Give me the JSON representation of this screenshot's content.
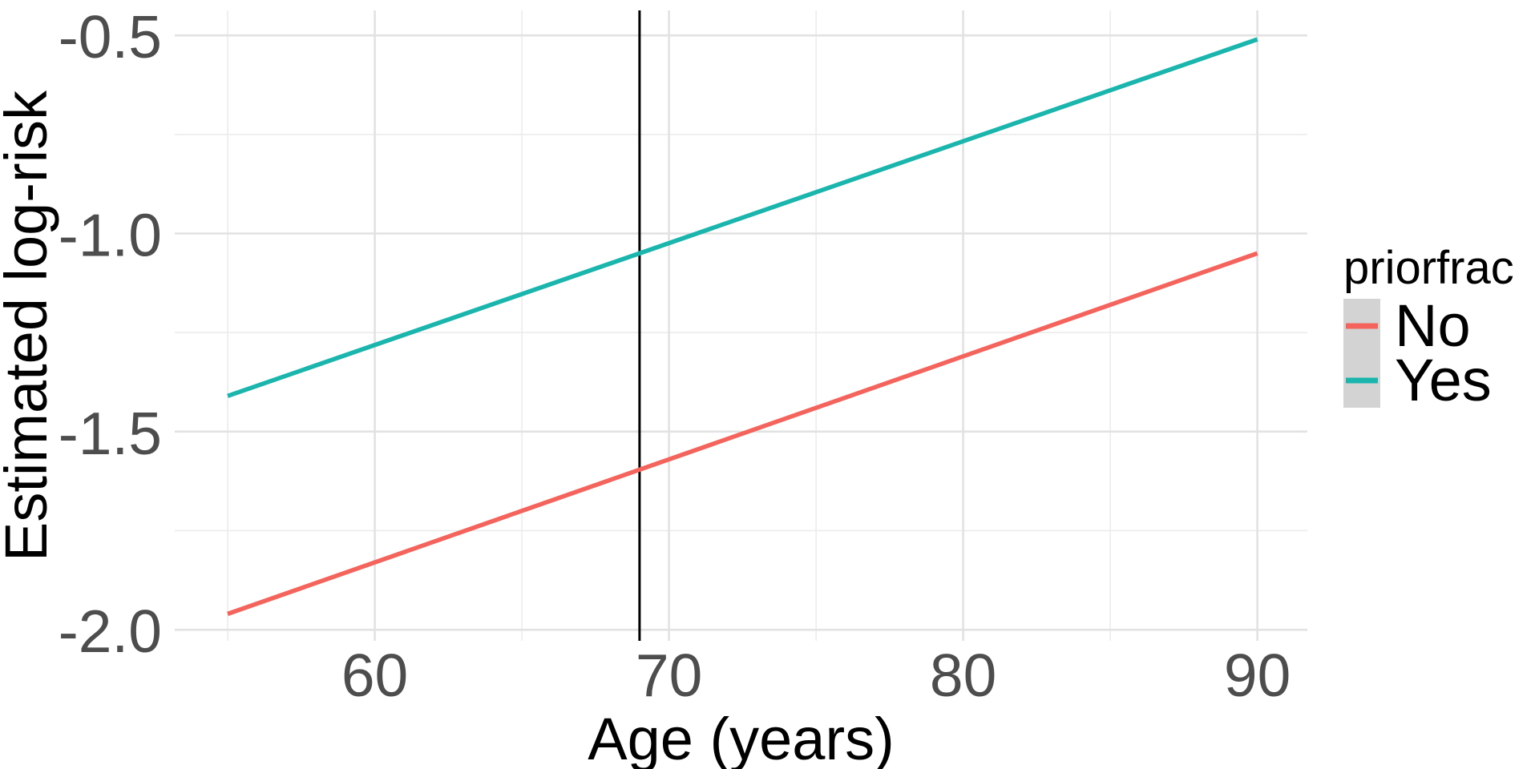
{
  "chart_data": {
    "type": "line",
    "title": "",
    "xlabel": "Age (years)",
    "ylabel": "Estimated log-risk",
    "xlim": [
      53.2,
      91.7
    ],
    "ylim": [
      -2.028,
      -0.437
    ],
    "grid": true,
    "x_ticks": {
      "major": [
        60,
        70,
        80,
        90
      ],
      "minor": [
        55,
        65,
        75,
        85
      ],
      "labels": [
        "60",
        "70",
        "80",
        "90"
      ]
    },
    "y_ticks": {
      "major": [
        -0.5,
        -1.0,
        -1.5,
        -2.0
      ],
      "minor": [
        -0.75,
        -1.25,
        -1.75
      ],
      "labels": [
        "-0.5",
        "-1.0",
        "-1.5",
        "-2.0"
      ]
    },
    "series": [
      {
        "name": "No",
        "color": "#f4645c",
        "x": [
          55,
          90
        ],
        "y": [
          -1.96,
          -1.05
        ]
      },
      {
        "name": "Yes",
        "color": "#1ab5ad",
        "x": [
          55,
          90
        ],
        "y": [
          -1.41,
          -0.51
        ]
      }
    ],
    "vline": {
      "x": 69,
      "color": "#000000"
    },
    "legend": {
      "title": "priorfrac",
      "position": "right",
      "key_fill": "#d3d3d3",
      "entries": [
        {
          "label": "No",
          "color": "#f4645c"
        },
        {
          "label": "Yes",
          "color": "#1ab5ad"
        }
      ]
    },
    "style": {
      "background": "#ffffff",
      "major_grid_color": "#e2e2e2",
      "minor_grid_color": "#ececec",
      "tick_label_color": "#4d4d4d"
    }
  }
}
